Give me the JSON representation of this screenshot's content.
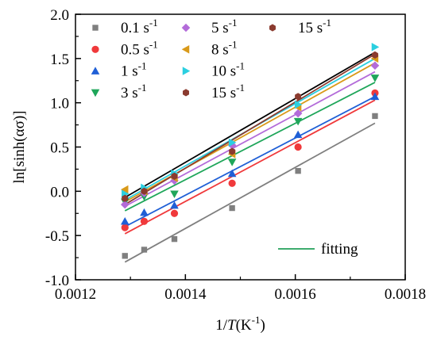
{
  "chart_data": {
    "type": "scatter",
    "xlabel": "1/T(K⁻¹)",
    "xlabel_prefix": "1/",
    "xlabel_var": "T",
    "xlabel_suffix": "(K",
    "xlabel_sup": "-1",
    "xlabel_close": ")",
    "ylabel": "ln[sinh(ασ)]",
    "xlim": [
      0.0012,
      0.0018
    ],
    "ylim": [
      -1.0,
      2.0
    ],
    "xticks": [
      "0.0012",
      "0.0014",
      "0.0016",
      "0.0018"
    ],
    "yticks": [
      "-1.0",
      "-0.5",
      "0.0",
      "0.5",
      "1.0",
      "1.5",
      "2.0"
    ],
    "grid": false,
    "legend_placement": "top-left",
    "fit_legend_label": "fitting",
    "fit_legend_color": "#22a05a",
    "x": [
      0.00129,
      0.001325,
      0.00138,
      0.001485,
      0.001605,
      0.001745
    ],
    "series": [
      {
        "name": "0.1 s",
        "sup": "-1",
        "marker": "square",
        "color": "#7f7f7f",
        "y": [
          -0.73,
          -0.66,
          -0.54,
          -0.19,
          0.23,
          0.85
        ],
        "fit": [
          -0.8,
          0.77
        ]
      },
      {
        "name": "0.5 s",
        "sup": "-1",
        "marker": "circle",
        "color": "#f0393b",
        "y": [
          -0.41,
          -0.34,
          -0.25,
          0.09,
          0.5,
          1.11
        ],
        "fit": [
          -0.48,
          1.03
        ]
      },
      {
        "name": "1 s",
        "sup": "-1",
        "marker": "triangle-up",
        "color": "#1f5fd6",
        "y": [
          -0.34,
          -0.24,
          -0.16,
          0.2,
          0.64,
          1.07
        ],
        "fit": [
          -0.4,
          1.07
        ]
      },
      {
        "name": "3 s",
        "sup": "-1",
        "marker": "triangle-down",
        "color": "#1fa65a",
        "y": [
          -0.12,
          -0.06,
          -0.03,
          0.33,
          0.79,
          1.28
        ],
        "fit": [
          -0.22,
          1.23
        ]
      },
      {
        "name": "5 s",
        "sup": "-1",
        "marker": "diamond",
        "color": "#b36bd9",
        "y": [
          -0.15,
          -0.02,
          0.12,
          0.52,
          0.88,
          1.42
        ],
        "fit": [
          -0.17,
          1.35
        ]
      },
      {
        "name": "8 s",
        "sup": "-1",
        "marker": "triangle-left",
        "color": "#d99a1a",
        "y": [
          0.02,
          0.0,
          0.15,
          0.42,
          0.95,
          1.5
        ],
        "fit": [
          -0.12,
          1.45
        ]
      },
      {
        "name": "10 s",
        "sup": "-1",
        "marker": "triangle-right",
        "color": "#2bcfe0",
        "y": [
          -0.03,
          0.04,
          0.2,
          0.55,
          0.98,
          1.63
        ],
        "fit": [
          -0.1,
          1.5
        ]
      },
      {
        "name": "15 s",
        "sup": "-1",
        "marker": "hexagon",
        "color": "#8b3b2f",
        "y": [
          -0.08,
          0.0,
          0.17,
          0.45,
          1.07,
          1.54
        ],
        "fit": [
          -0.15,
          1.55
        ]
      }
    ],
    "extra_legend_entry": {
      "name": "15 s",
      "sup": "-1",
      "marker": "hexagon",
      "color": "#8b3b2f"
    },
    "extra_fit_line": {
      "color": "#000000",
      "fit": [
        -0.07,
        1.57
      ]
    }
  }
}
